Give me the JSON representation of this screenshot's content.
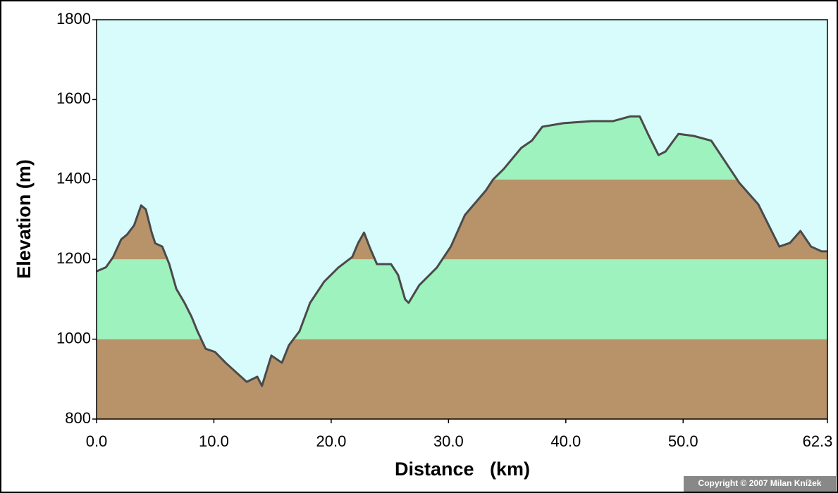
{
  "chart_data": {
    "type": "elevation-profile",
    "x_label": "Distance   (km)",
    "y_label": "Elevation (m)",
    "x": [
      0,
      0.8,
      1.4,
      2.1,
      2.6,
      3.2,
      3.8,
      4.2,
      4.7,
      5.0,
      5.6,
      6.2,
      6.8,
      7.5,
      8.1,
      8.6,
      9.3,
      10.1,
      11.0,
      12.2,
      12.8,
      13.7,
      14.1,
      14.9,
      15.8,
      16.4,
      17.3,
      18.2,
      19.4,
      20.6,
      21.8,
      22.3,
      22.8,
      23.3,
      23.9,
      25.1,
      25.7,
      26.3,
      26.6,
      27.5,
      29.0,
      30.2,
      31.4,
      33.2,
      33.8,
      34.7,
      36.2,
      37.1,
      38.0,
      39.8,
      42.2,
      44.0,
      45.5,
      46.3,
      47.0,
      47.9,
      48.5,
      49.6,
      50.9,
      52.4,
      53.6,
      54.8,
      56.4,
      58.2,
      59.1,
      60.0,
      60.9,
      61.8,
      62.3
    ],
    "values": [
      1170,
      1180,
      1205,
      1250,
      1262,
      1285,
      1335,
      1325,
      1267,
      1240,
      1232,
      1188,
      1126,
      1091,
      1056,
      1020,
      976,
      968,
      941,
      909,
      893,
      906,
      883,
      959,
      941,
      985,
      1020,
      1091,
      1144,
      1179,
      1206,
      1241,
      1267,
      1229,
      1188,
      1188,
      1161,
      1100,
      1091,
      1135,
      1179,
      1232,
      1311,
      1373,
      1400,
      1426,
      1479,
      1497,
      1532,
      1541,
      1546,
      1546,
      1558,
      1558,
      1514,
      1461,
      1470,
      1514,
      1509,
      1497,
      1444,
      1391,
      1338,
      1232,
      1241,
      1271,
      1232,
      1220,
      1220
    ],
    "xlim": [
      0,
      62.3
    ],
    "ylim": [
      800,
      1800
    ],
    "xticks": [
      {
        "value": 0,
        "label": "0.0"
      },
      {
        "value": 10,
        "label": "10.0"
      },
      {
        "value": 20,
        "label": "20.0"
      },
      {
        "value": 30,
        "label": "30.0"
      },
      {
        "value": 40,
        "label": "40.0"
      },
      {
        "value": 50,
        "label": "50.0"
      },
      62.3
    ],
    "yticks": [
      800,
      1000,
      1200,
      1400,
      1600,
      1800
    ],
    "band_colors": [
      "#b8936a",
      "#9ef2bd"
    ],
    "background": "#d8fcfc",
    "line_color": "#4a4a4a",
    "copyright": "Copyright © 2007 Milan Knížek"
  }
}
